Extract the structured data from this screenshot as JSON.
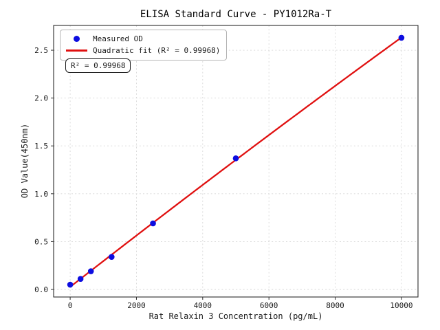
{
  "chart_data": {
    "type": "scatter",
    "title": "ELISA Standard Curve - PY1012Ra-T",
    "xlabel": "Rat Relaxin 3 Concentration (pg/mL)",
    "ylabel": "OD Value(450nm)",
    "x": [
      0,
      312.5,
      625,
      1250,
      2500,
      5000,
      10000
    ],
    "y": [
      0.05,
      0.11,
      0.19,
      0.34,
      0.69,
      1.37,
      2.63
    ],
    "series": [
      {
        "name": "Measured OD",
        "kind": "scatter",
        "color": "#0d0de0"
      },
      {
        "name": "Quadratic fit (R² = 0.99968)",
        "kind": "quadratic_fit",
        "color": "#e01010"
      }
    ],
    "annotation": "R² = 0.99968",
    "r_squared": 0.99968,
    "xticks": [
      0,
      2000,
      4000,
      6000,
      8000,
      10000
    ],
    "yticks": [
      0,
      0.5,
      1,
      1.5,
      2,
      2.5
    ],
    "xlim": [
      -500,
      10500
    ],
    "ylim": [
      -0.079,
      2.759
    ],
    "grid": true,
    "grid_color": "#d6d6d6",
    "axis_color": "#2b2b2b",
    "tick_label_color": "#1a1a1a",
    "legend_position": "upper-left"
  }
}
